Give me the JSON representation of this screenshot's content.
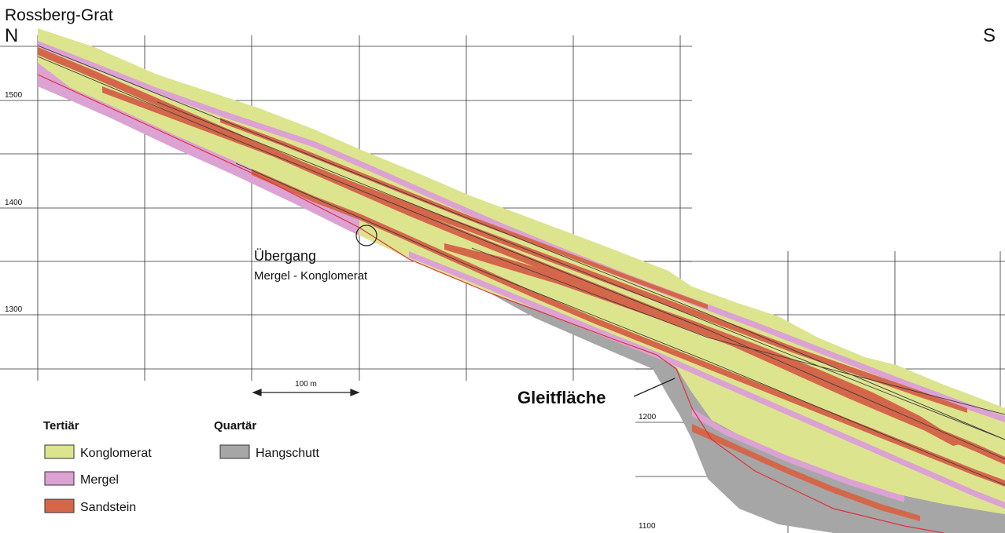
{
  "header": {
    "place": "Rossberg-Grat",
    "north": "N",
    "south": "S"
  },
  "elevation_labels": [
    "1500",
    "1400",
    "1300",
    "1200",
    "1100"
  ],
  "annotations": {
    "transition_title": "Übergang",
    "transition_detail": "Mergel - Konglomerat",
    "slide_surface": "Gleitfläche",
    "scale_bar": "100 m"
  },
  "legend": {
    "tertiary_heading": "Tertiär",
    "quaternary_heading": "Quartär",
    "items": [
      {
        "label": "Konglomerat",
        "color": "#dde48e"
      },
      {
        "label": "Mergel",
        "color": "#dba2d3"
      },
      {
        "label": "Sandstein",
        "color": "#d4674a"
      },
      {
        "label": "Hangschutt",
        "color": "#a6a6a6"
      }
    ]
  },
  "colors": {
    "conglomerate": "#dde48e",
    "marl": "#dba2d3",
    "sandstone": "#d4674a",
    "scree": "#a6a6a6",
    "boundary_line": "#e0303a",
    "grid": "#333333"
  }
}
